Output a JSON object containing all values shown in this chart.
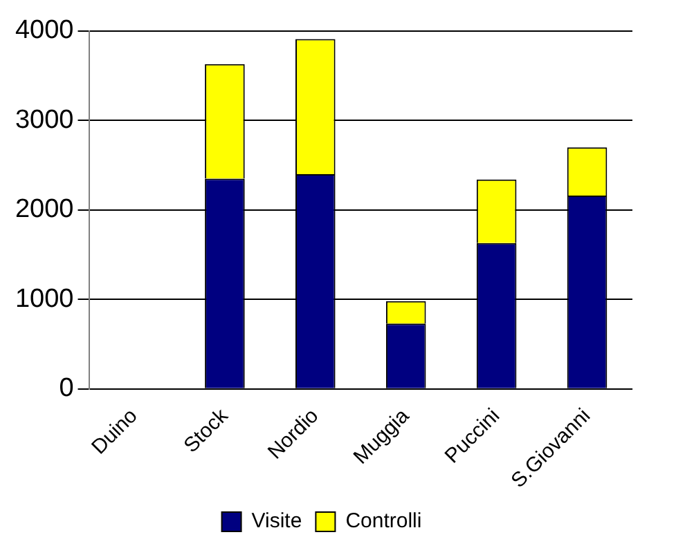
{
  "chart_data": {
    "type": "bar",
    "stacked": true,
    "categories": [
      "Duino",
      "Stock",
      "Nordio",
      "Muggia",
      "Puccini",
      "S.Giovanni"
    ],
    "series": [
      {
        "name": "Visite",
        "color": "#000080",
        "values": [
          0,
          2350,
          2400,
          730,
          1630,
          2160
        ]
      },
      {
        "name": "Controlli",
        "color": "#ffff00",
        "values": [
          0,
          1280,
          1510,
          250,
          710,
          540
        ]
      }
    ],
    "ylim": [
      0,
      4000
    ],
    "yticks": [
      0,
      1000,
      2000,
      3000,
      4000
    ],
    "grid": "y",
    "legend": "bottom"
  }
}
